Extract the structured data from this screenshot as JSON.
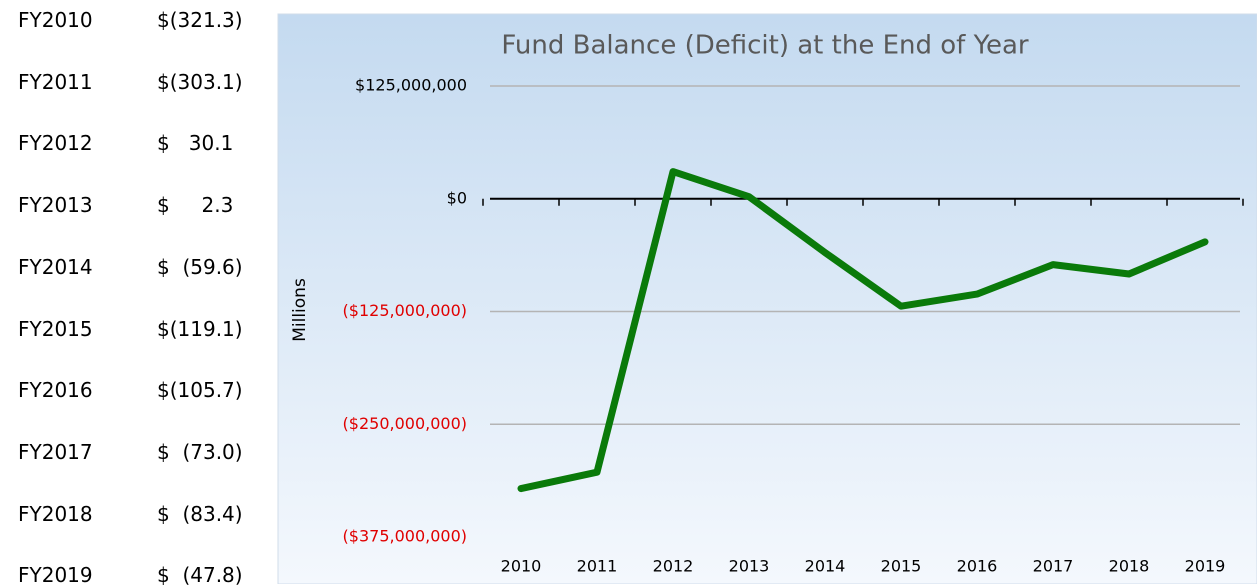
{
  "table": {
    "rows": [
      [
        "FY2010",
        "$(321.3)"
      ],
      [
        "FY2011",
        "$(303.1)"
      ],
      [
        "FY2012",
        "$   30.1"
      ],
      [
        "FY2013",
        "$     2.3"
      ],
      [
        "FY2014",
        "$  (59.6)"
      ],
      [
        "FY2015",
        "$(119.1)"
      ],
      [
        "FY2016",
        "$(105.7)"
      ],
      [
        "FY2017",
        "$  (73.0)"
      ],
      [
        "FY2018",
        "$  (83.4)"
      ],
      [
        "FY2019",
        "$  (47.8)"
      ]
    ]
  },
  "chart_data": {
    "type": "line",
    "title": "Fund Balance  (Deficit) at the End of Year",
    "y_label": "Millions",
    "categories": [
      "2010",
      "2011",
      "2012",
      "2013",
      "2014",
      "2015",
      "2016",
      "2017",
      "2018",
      "2019"
    ],
    "series": [
      {
        "name": "Fund Balance",
        "color": "#0a7a0a",
        "values": [
          -321300000,
          -303100000,
          30100000,
          2300000,
          -59600000,
          -119100000,
          -105700000,
          -73000000,
          -83400000,
          -47800000
        ]
      }
    ],
    "ylim": [
      -375000000,
      125000000
    ],
    "yticks": [
      {
        "value": 125000000,
        "label": "$125,000,000"
      },
      {
        "value": 0,
        "label": "$0"
      },
      {
        "value": -125000000,
        "label": "($125,000,000)"
      },
      {
        "value": -250000000,
        "label": "($250,000,000)"
      },
      {
        "value": -375000000,
        "label": "($375,000,000)"
      }
    ],
    "negative_tick_color": "#e00000",
    "grid": true
  }
}
